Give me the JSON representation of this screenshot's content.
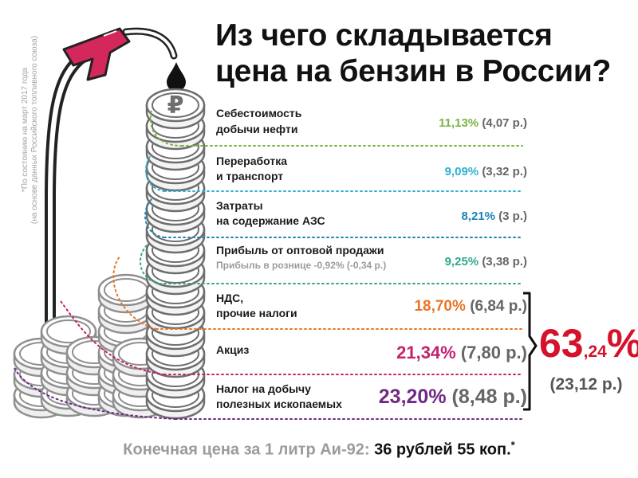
{
  "title": {
    "line1": "Из чего складывается",
    "line2": "цена на бензин в России?"
  },
  "note": {
    "line1": "*По состоянию на март 2017 года",
    "line2": "(на основе данных Российского топливного союза)"
  },
  "items": [
    {
      "label1": "Себестоимость",
      "label2": "добычи нефти",
      "percent": "11,13%",
      "amount": "(4,07 р.)",
      "color": "#7cb342"
    },
    {
      "label1": "Переработка",
      "label2": "и транспорт",
      "percent": "9,09%",
      "amount": "(3,32 р.)",
      "color": "#2fb0d0"
    },
    {
      "label1": "Затраты",
      "label2": "на содержание АЗС",
      "percent": "8,21%",
      "amount": "(3 р.)",
      "color": "#1f82b8"
    },
    {
      "label1": "Прибыль от оптовой продажи",
      "label2": "Прибыль в рознице -0,92% (-0,34 р.)",
      "percent": "9,25%",
      "amount": "(3,38 р.)",
      "color": "#33a68f"
    },
    {
      "label1": "НДС,",
      "label2": "прочие налоги",
      "percent": "18,70%",
      "amount": "(6,84 р.)",
      "color": "#e8762a"
    },
    {
      "label1": "Акциз",
      "label2": "",
      "percent": "21,34%",
      "amount": "(7,80 р.)",
      "color": "#c5216e"
    },
    {
      "label1": "Налог на добычу",
      "label2": "полезных ископаемых",
      "percent": "23,20%",
      "amount": "(8,48 р.)",
      "color": "#6f2a86"
    }
  ],
  "total": {
    "whole": "63",
    "fraction": ",24",
    "percent_sign": "%",
    "amount": "(23,12 р.)",
    "color": "#d4122c"
  },
  "footer": {
    "label": "Конечная цена за 1 литр Аи-92:",
    "price": "36 рублей 55 коп.",
    "mark": "*"
  },
  "icons": {
    "coin": "ruble-coin-icon",
    "drop": "fuel-drop-icon",
    "nozzle": "fuel-nozzle-icon"
  }
}
